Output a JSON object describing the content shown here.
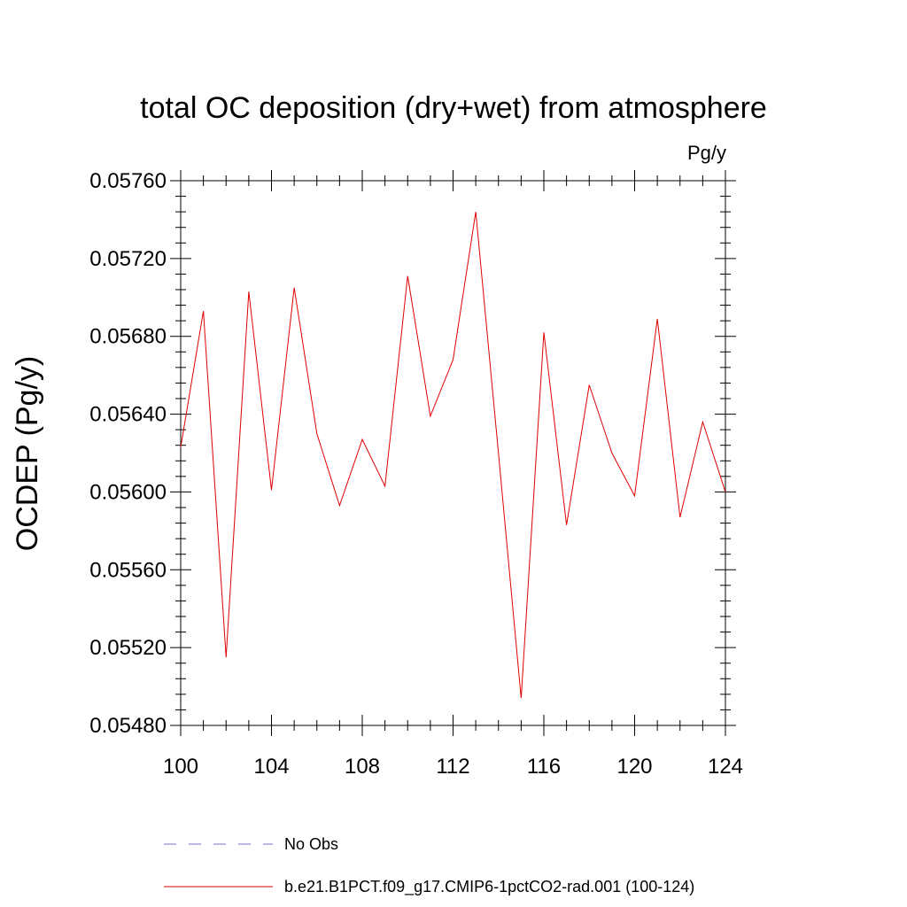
{
  "chart_data": {
    "type": "line",
    "title": "total OC deposition (dry+wet) from atmosphere",
    "units_label": "Pg/y",
    "ylabel": "OCDEP  (Pg/y)",
    "xlabel": "",
    "xlim": [
      100,
      124
    ],
    "ylim": [
      0.0548,
      0.0576
    ],
    "x_ticks": [
      100,
      104,
      108,
      112,
      116,
      120,
      124
    ],
    "y_ticks": [
      "0.05480",
      "0.05520",
      "0.05560",
      "0.05600",
      "0.05640",
      "0.05680",
      "0.05720",
      "0.05760"
    ],
    "grid": false,
    "legend_position": "bottom",
    "series": [
      {
        "name": "b.e21.B1PCT.f09_g17.CMIP6-1pctCO2-rad.001 (100-124)",
        "color": "#e00000",
        "style": "solid",
        "x": [
          100,
          101,
          102,
          103,
          104,
          105,
          106,
          107,
          108,
          109,
          110,
          111,
          112,
          113,
          114,
          115,
          116,
          117,
          118,
          119,
          120,
          121,
          122,
          123,
          124
        ],
        "y": [
          0.05623,
          0.05693,
          0.05515,
          0.05703,
          0.05601,
          0.05705,
          0.0563,
          0.05593,
          0.05627,
          0.05603,
          0.05711,
          0.05639,
          0.05668,
          0.05744,
          0.0562,
          0.05494,
          0.05682,
          0.05583,
          0.05655,
          0.0562,
          0.05598,
          0.05689,
          0.05587,
          0.05636,
          0.056
        ]
      }
    ],
    "legend": [
      {
        "label": "No Obs",
        "color": "#7070c0",
        "style": "dashed"
      },
      {
        "label": "b.e21.B1PCT.f09_g17.CMIP6-1pctCO2-rad.001 (100-124)",
        "color": "#e00000",
        "style": "solid"
      }
    ]
  }
}
